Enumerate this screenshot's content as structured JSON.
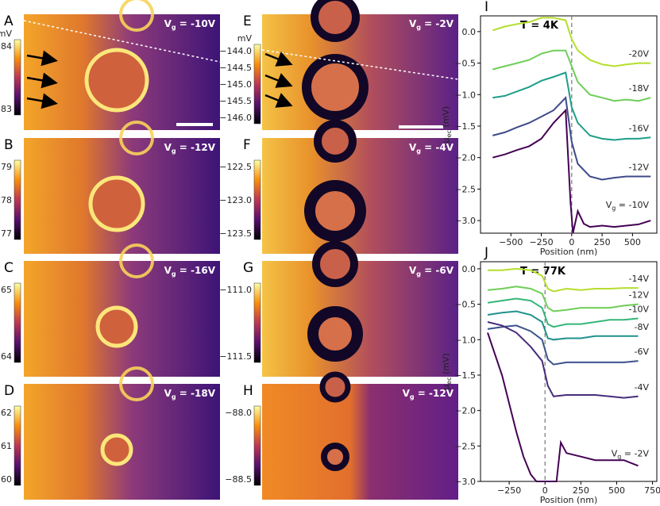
{
  "colors": {
    "inferno_low": "#1b0c41",
    "inferno_mid": "#c33b4f",
    "inferno_high": "#fcffa4"
  },
  "panels_left": [
    {
      "letter": "A",
      "vg": "V",
      "vg_sub": "g",
      "vg_val": " = -10V",
      "unit": "mV",
      "ticks": [
        "84",
        "83"
      ]
    },
    {
      "letter": "B",
      "vg": "V",
      "vg_sub": "g",
      "vg_val": " = -12V",
      "unit": "",
      "ticks": [
        "79",
        "78",
        "77"
      ]
    },
    {
      "letter": "C",
      "vg": "V",
      "vg_sub": "g",
      "vg_val": " = -16V",
      "unit": "",
      "ticks": [
        "65",
        "64"
      ]
    },
    {
      "letter": "D",
      "vg": "V",
      "vg_sub": "g",
      "vg_val": " = -18V",
      "unit": "",
      "ticks": [
        "62",
        "61",
        "60"
      ]
    }
  ],
  "panels_right": [
    {
      "letter": "E",
      "vg": "V",
      "vg_sub": "g",
      "vg_val": " = -2V",
      "unit": "mV",
      "ticks": [
        "−144.0",
        "−144.5",
        "−145.0",
        "−145.5",
        "−146.0"
      ]
    },
    {
      "letter": "F",
      "vg": "V",
      "vg_sub": "g",
      "vg_val": " = -4V",
      "unit": "",
      "ticks": [
        "−122.5",
        "−123.0",
        "−123.5"
      ]
    },
    {
      "letter": "G",
      "vg": "V",
      "vg_sub": "g",
      "vg_val": " = -6V",
      "unit": "",
      "ticks": [
        "−111.0",
        "−111.5"
      ]
    },
    {
      "letter": "H",
      "vg": "V",
      "vg_sub": "g",
      "vg_val": " = -12V",
      "unit": "",
      "ticks": [
        "−88.0",
        "−88.5"
      ]
    }
  ],
  "chart_data": [
    {
      "type": "line",
      "panel": "I",
      "title": "T = 4K",
      "xlabel": "Position (nm)",
      "ylabel": "μ",
      "ylabel_sub": "ec",
      "ylabel_unit": " (mV)",
      "xlim": [
        -750,
        700
      ],
      "ylim": [
        -3.2,
        0.25
      ],
      "xticks": [
        -500,
        -250,
        0,
        250,
        500
      ],
      "xtick_labels": [
        "−500",
        "−250",
        "0",
        "250",
        "500"
      ],
      "yticks": [
        0.0,
        -0.5,
        -1.0,
        -1.5,
        -2.0,
        -2.5,
        -3.0
      ],
      "ytick_labels": [
        "0.0",
        "−0.5",
        "−1.0",
        "−1.5",
        "−2.0",
        "−2.5",
        "−3.0"
      ],
      "vline_x": 0,
      "series": [
        {
          "name": "-20V",
          "label": "-20V",
          "color": "#b5de2b",
          "x": [
            -650,
            -550,
            -450,
            -350,
            -250,
            -150,
            -50,
            0,
            50,
            150,
            250,
            350,
            450,
            550,
            650
          ],
          "values": [
            0.02,
            0.08,
            0.12,
            0.15,
            0.22,
            0.22,
            0.18,
            -0.12,
            -0.3,
            -0.45,
            -0.52,
            -0.55,
            -0.52,
            -0.5,
            -0.5
          ]
        },
        {
          "name": "-18V",
          "label": "-18V",
          "color": "#6ece58",
          "x": [
            -650,
            -550,
            -450,
            -350,
            -250,
            -150,
            -50,
            0,
            50,
            150,
            250,
            350,
            450,
            550,
            650
          ],
          "values": [
            -0.6,
            -0.55,
            -0.5,
            -0.45,
            -0.35,
            -0.3,
            -0.3,
            -0.55,
            -0.8,
            -1.0,
            -1.05,
            -1.1,
            -1.08,
            -1.1,
            -1.05
          ]
        },
        {
          "name": "-16V",
          "label": "-16V",
          "color": "#1f9e89",
          "x": [
            -650,
            -550,
            -450,
            -350,
            -250,
            -150,
            -50,
            0,
            50,
            150,
            250,
            350,
            450,
            550,
            650
          ],
          "values": [
            -1.05,
            -1.02,
            -0.95,
            -0.88,
            -0.78,
            -0.72,
            -0.65,
            -1.2,
            -1.45,
            -1.65,
            -1.7,
            -1.72,
            -1.7,
            -1.7,
            -1.68
          ]
        },
        {
          "name": "-12V",
          "label": "-12V",
          "color": "#3e4a89",
          "x": [
            -650,
            -550,
            -450,
            -350,
            -250,
            -150,
            -50,
            0,
            50,
            150,
            250,
            350,
            450,
            550,
            650
          ],
          "values": [
            -1.65,
            -1.6,
            -1.52,
            -1.45,
            -1.35,
            -1.25,
            -1.05,
            -1.75,
            -2.1,
            -2.3,
            -2.35,
            -2.32,
            -2.3,
            -2.3,
            -2.3
          ]
        },
        {
          "name": "-10V",
          "label": "V",
          "label_sub": "g",
          "label_rest": " = -10V",
          "color": "#440154",
          "x": [
            -650,
            -550,
            -450,
            -350,
            -250,
            -150,
            -50,
            -10,
            10,
            50,
            100,
            150,
            250,
            350,
            450,
            550,
            650
          ],
          "values": [
            -2.0,
            -1.95,
            -1.88,
            -1.82,
            -1.7,
            -1.45,
            -1.25,
            -2.7,
            -3.2,
            -2.85,
            -3.05,
            -3.1,
            -3.08,
            -3.1,
            -3.08,
            -3.06,
            -3.0
          ]
        }
      ],
      "annotations": [
        "-20V",
        "-18V",
        "-16V",
        "-12V"
      ]
    },
    {
      "type": "line",
      "panel": "J",
      "title": "T = 77K",
      "xlabel": "Position (nm)",
      "ylabel": "μ",
      "ylabel_sub": "ec",
      "ylabel_unit": " (mV)",
      "xlim": [
        -450,
        780
      ],
      "ylim": [
        -3.0,
        0.1
      ],
      "xticks": [
        -250,
        0,
        250,
        500,
        750
      ],
      "xtick_labels": [
        "−250",
        "0",
        "250",
        "500",
        "750"
      ],
      "yticks": [
        0.0,
        -0.5,
        -1.0,
        -1.5,
        -2.0,
        -2.5,
        -3.0
      ],
      "ytick_labels": [
        "0.0",
        "−0.5",
        "−1.0",
        "−1.5",
        "−2.0",
        "−2.5",
        "−3.0"
      ],
      "vline_x": 0,
      "series": [
        {
          "name": "-14V",
          "label": "-14V",
          "color": "#b5de2b",
          "x": [
            -400,
            -300,
            -200,
            -100,
            -20,
            20,
            60,
            150,
            250,
            350,
            450,
            550,
            650
          ],
          "values": [
            -0.02,
            -0.02,
            0.0,
            -0.02,
            -0.1,
            -0.28,
            -0.32,
            -0.28,
            -0.3,
            -0.28,
            -0.28,
            -0.27,
            -0.27
          ]
        },
        {
          "name": "-12V",
          "label": "-12V",
          "color": "#6ece58",
          "x": [
            -400,
            -300,
            -200,
            -100,
            -20,
            20,
            60,
            150,
            250,
            350,
            450,
            550,
            650
          ],
          "values": [
            -0.3,
            -0.28,
            -0.25,
            -0.28,
            -0.35,
            -0.55,
            -0.6,
            -0.58,
            -0.55,
            -0.55,
            -0.55,
            -0.52,
            -0.5
          ]
        },
        {
          "name": "-10V",
          "label": "-10V",
          "color": "#35b779",
          "x": [
            -400,
            -300,
            -200,
            -100,
            -20,
            20,
            60,
            150,
            250,
            350,
            450,
            550,
            650
          ],
          "values": [
            -0.48,
            -0.45,
            -0.42,
            -0.45,
            -0.55,
            -0.78,
            -0.82,
            -0.78,
            -0.78,
            -0.75,
            -0.72,
            -0.72,
            -0.7
          ]
        },
        {
          "name": "-8V",
          "label": "-8V",
          "color": "#21918c",
          "x": [
            -400,
            -300,
            -200,
            -100,
            -20,
            20,
            60,
            150,
            250,
            350,
            450,
            550,
            650
          ],
          "values": [
            -0.65,
            -0.62,
            -0.6,
            -0.65,
            -0.75,
            -0.98,
            -1.0,
            -0.98,
            -0.98,
            -0.95,
            -0.95,
            -0.95,
            -0.95
          ]
        },
        {
          "name": "-6V",
          "label": "-6V",
          "color": "#3b528b",
          "x": [
            -400,
            -300,
            -200,
            -100,
            -20,
            20,
            60,
            150,
            250,
            350,
            450,
            550,
            650
          ],
          "values": [
            -0.85,
            -0.82,
            -0.8,
            -0.88,
            -1.0,
            -1.28,
            -1.35,
            -1.32,
            -1.32,
            -1.32,
            -1.32,
            -1.32,
            -1.3
          ]
        },
        {
          "name": "-4V",
          "label": "-4V",
          "color": "#472d7b",
          "x": [
            -400,
            -300,
            -200,
            -100,
            -20,
            20,
            60,
            150,
            250,
            350,
            450,
            550,
            650
          ],
          "values": [
            -0.75,
            -0.8,
            -0.9,
            -1.1,
            -1.3,
            -1.65,
            -1.8,
            -1.78,
            -1.78,
            -1.78,
            -1.8,
            -1.82,
            -1.8
          ]
        },
        {
          "name": "-2V",
          "label": "V",
          "label_sub": "g",
          "label_rest": " = -2V",
          "color": "#440154",
          "x": [
            -400,
            -350,
            -300,
            -250,
            -200,
            -150,
            -100,
            -60,
            80,
            110,
            150,
            250,
            350,
            450,
            550,
            650
          ],
          "values": [
            -0.9,
            -1.2,
            -1.5,
            -1.9,
            -2.3,
            -2.65,
            -2.9,
            -3.0,
            -3.0,
            -2.45,
            -2.6,
            -2.65,
            -2.7,
            -2.7,
            -2.7,
            -2.78
          ]
        }
      ],
      "annotations": [
        "-14V",
        "-12V",
        "-10V",
        "-8V",
        "-6V",
        "-4V"
      ]
    }
  ]
}
